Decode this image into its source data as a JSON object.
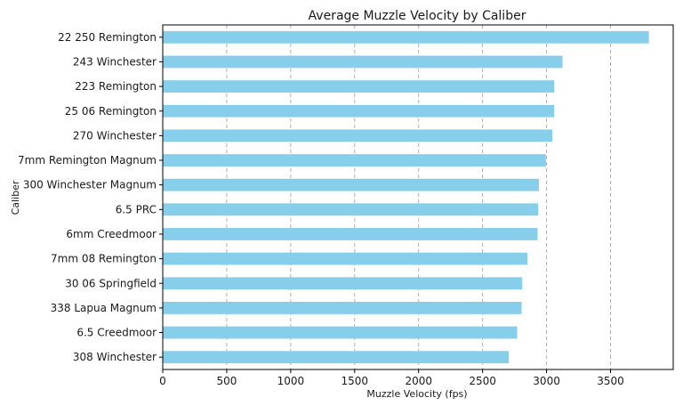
{
  "chart_data": {
    "type": "bar",
    "orientation": "horizontal",
    "title": "Average Muzzle Velocity by Caliber",
    "xlabel": "Muzzle Velocity (fps)",
    "ylabel": "Caliber",
    "xlim": [
      0,
      3990
    ],
    "xticks": [
      0,
      500,
      1000,
      1500,
      2000,
      2500,
      3000,
      3500
    ],
    "grid": "x-dashed",
    "bar_color": "#87CEEB",
    "categories": [
      "22 250 Remington",
      "243 Winchester",
      "223 Remington",
      "25 06 Remington",
      "270 Winchester",
      "7mm Remington Magnum",
      "300 Winchester Magnum",
      "6.5 PRC",
      "6mm Creedmoor",
      "7mm 08 Remington",
      "30 06 Springfield",
      "338 Lapua Magnum",
      "6.5 Creedmoor",
      "308 Winchester"
    ],
    "values": [
      3800,
      3125,
      3060,
      3060,
      3045,
      2995,
      2940,
      2935,
      2930,
      2850,
      2810,
      2805,
      2770,
      2705
    ]
  }
}
